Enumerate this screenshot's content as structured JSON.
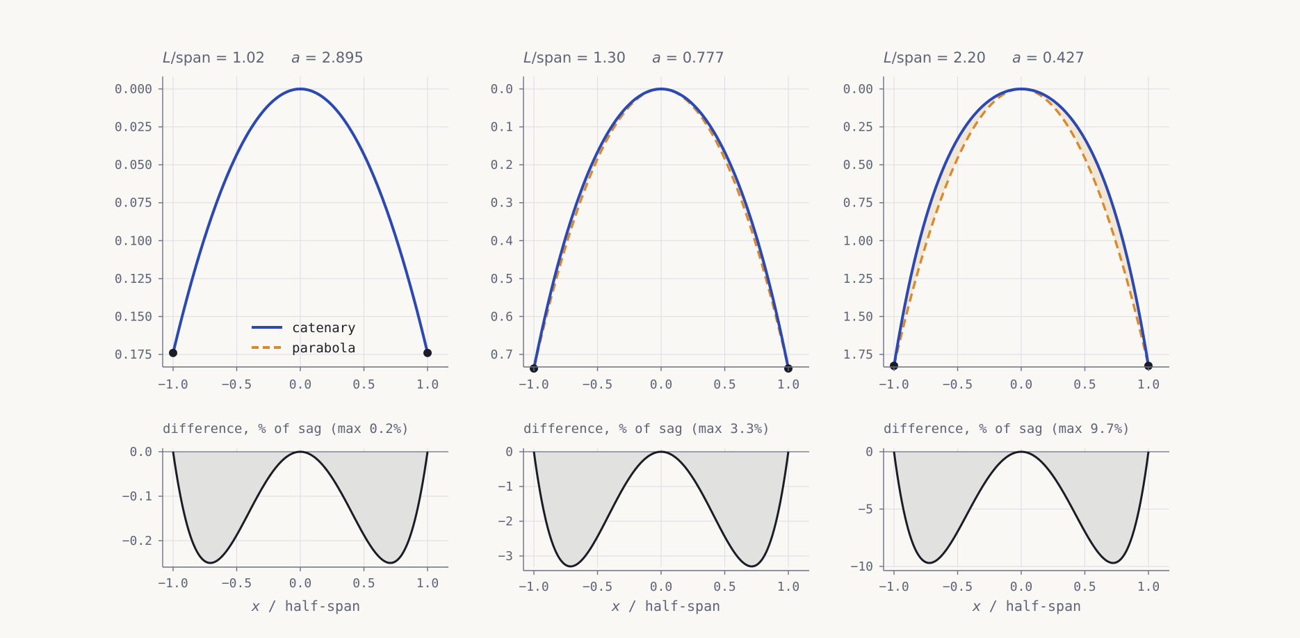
{
  "chart_data": {
    "type": "line",
    "panels": [
      {
        "title": {
          "L_label": "L",
          "span_text": "/span = 1.02",
          "a_label": "a",
          "a_text": " = 2.895"
        },
        "L_over_span": 1.02,
        "a": 2.895,
        "top": {
          "xlim": [
            -1.0,
            1.0
          ],
          "ylim": [
            0.0,
            0.175
          ],
          "y_inverted": true,
          "xticks": [
            "−1.0",
            "−0.5",
            "0.0",
            "0.5",
            "1.0"
          ],
          "yticks": [
            "0.000",
            "0.025",
            "0.050",
            "0.075",
            "0.100",
            "0.125",
            "0.150",
            "0.175"
          ],
          "series": [
            {
              "name": "catenary",
              "x": [
                -1.0,
                -0.75,
                -0.5,
                -0.25,
                0.0,
                0.25,
                0.5,
                0.75,
                1.0
              ],
              "y": [
                0.174,
                0.097,
                0.043,
                0.011,
                0.0,
                0.011,
                0.043,
                0.097,
                0.174
              ]
            },
            {
              "name": "parabola",
              "x": [
                -1.0,
                -0.75,
                -0.5,
                -0.25,
                0.0,
                0.25,
                0.5,
                0.75,
                1.0
              ],
              "y": [
                0.174,
                0.098,
                0.044,
                0.011,
                0.0,
                0.011,
                0.044,
                0.098,
                0.174
              ]
            }
          ],
          "endpoints": [
            [
              -1.0,
              0.174
            ],
            [
              1.0,
              0.174
            ]
          ]
        },
        "legend": {
          "position": "lower-center",
          "entries": [
            "catenary",
            "parabola"
          ]
        },
        "bottom": {
          "title": "difference, % of sag   (max 0.2%)",
          "xlim": [
            -1.0,
            1.0
          ],
          "ylim": [
            -0.25,
            0.0
          ],
          "xticks": [
            "−1.0",
            "−0.5",
            "0.0",
            "0.5",
            "1.0"
          ],
          "yticks": [
            "0.0",
            "−0.1",
            "−0.2"
          ],
          "series": [
            {
              "name": "difference",
              "x": [
                -1.0,
                -0.9,
                -0.7,
                -0.5,
                -0.3,
                0.0,
                0.3,
                0.5,
                0.7,
                0.9,
                1.0
              ],
              "y": [
                0.0,
                -0.15,
                -0.25,
                -0.19,
                -0.08,
                0.0,
                -0.08,
                -0.19,
                -0.25,
                -0.15,
                0.0
              ]
            }
          ]
        }
      },
      {
        "title": {
          "L_label": "L",
          "span_text": "/span = 1.30",
          "a_label": "a",
          "a_text": " = 0.777"
        },
        "L_over_span": 1.3,
        "a": 0.777,
        "top": {
          "xlim": [
            -1.0,
            1.0
          ],
          "ylim": [
            0.0,
            0.7
          ],
          "y_inverted": true,
          "xticks": [
            "−1.0",
            "−0.5",
            "0.0",
            "0.5",
            "1.0"
          ],
          "yticks": [
            "0.0",
            "0.1",
            "0.2",
            "0.3",
            "0.4",
            "0.5",
            "0.6",
            "0.7"
          ],
          "series": [
            {
              "name": "catenary",
              "x": [
                -1.0,
                -0.75,
                -0.5,
                -0.25,
                0.0,
                0.25,
                0.5,
                0.75,
                1.0
              ],
              "y": [
                0.737,
                0.397,
                0.17,
                0.041,
                0.0,
                0.041,
                0.17,
                0.397,
                0.737
              ]
            },
            {
              "name": "parabola",
              "x": [
                -1.0,
                -0.75,
                -0.5,
                -0.25,
                0.0,
                0.25,
                0.5,
                0.75,
                1.0
              ],
              "y": [
                0.737,
                0.415,
                0.184,
                0.046,
                0.0,
                0.046,
                0.184,
                0.415,
                0.737
              ]
            }
          ],
          "endpoints": [
            [
              -1.0,
              0.737
            ],
            [
              1.0,
              0.737
            ]
          ]
        },
        "bottom": {
          "title": "difference, % of sag   (max 3.3%)",
          "xlim": [
            -1.0,
            1.0
          ],
          "ylim": [
            -3.3,
            0.0
          ],
          "xticks": [
            "−1.0",
            "−0.5",
            "0.0",
            "0.5",
            "1.0"
          ],
          "yticks": [
            "0",
            "−1",
            "−2",
            "−3"
          ],
          "series": [
            {
              "name": "difference",
              "x": [
                -1.0,
                -0.9,
                -0.7,
                -0.5,
                -0.3,
                0.0,
                0.3,
                0.5,
                0.7,
                0.9,
                1.0
              ],
              "y": [
                0.0,
                -2.0,
                -3.3,
                -2.5,
                -1.05,
                0.0,
                -1.05,
                -2.5,
                -3.3,
                -2.0,
                0.0
              ]
            }
          ]
        }
      },
      {
        "title": {
          "L_label": "L",
          "span_text": "/span = 2.20",
          "a_label": "a",
          "a_text": " = 0.427"
        },
        "L_over_span": 2.2,
        "a": 0.427,
        "top": {
          "xlim": [
            -1.0,
            1.0
          ],
          "ylim": [
            0.0,
            1.75
          ],
          "y_inverted": true,
          "xticks": [
            "−1.0",
            "−0.5",
            "0.0",
            "0.5",
            "1.0"
          ],
          "yticks": [
            "0.00",
            "0.25",
            "0.50",
            "0.75",
            "1.00",
            "1.25",
            "1.50",
            "1.75"
          ],
          "series": [
            {
              "name": "catenary",
              "x": [
                -1.0,
                -0.75,
                -0.5,
                -0.25,
                0.0,
                0.25,
                0.5,
                0.75,
                1.0
              ],
              "y": [
                1.825,
                0.87,
                0.336,
                0.074,
                0.0,
                0.074,
                0.336,
                0.87,
                1.825
              ]
            },
            {
              "name": "parabola",
              "x": [
                -1.0,
                -0.75,
                -0.5,
                -0.25,
                0.0,
                0.25,
                0.5,
                0.75,
                1.0
              ],
              "y": [
                1.825,
                1.027,
                0.456,
                0.114,
                0.0,
                0.114,
                0.456,
                1.027,
                1.825
              ]
            }
          ],
          "endpoints": [
            [
              -1.0,
              1.825
            ],
            [
              1.0,
              1.825
            ]
          ]
        },
        "bottom": {
          "title": "difference, % of sag   (max 9.7%)",
          "xlim": [
            -1.0,
            1.0
          ],
          "ylim": [
            -10,
            0
          ],
          "xticks": [
            "−1.0",
            "−0.5",
            "0.0",
            "0.5",
            "1.0"
          ],
          "yticks": [
            "0",
            "−5",
            "−10"
          ],
          "series": [
            {
              "name": "difference",
              "x": [
                -1.0,
                -0.9,
                -0.7,
                -0.5,
                -0.3,
                0.0,
                0.3,
                0.5,
                0.7,
                0.9,
                1.0
              ],
              "y": [
                0.0,
                -6.0,
                -9.7,
                -7.4,
                -3.1,
                0.0,
                -3.1,
                -7.4,
                -9.7,
                -6.0,
                0.0
              ]
            }
          ]
        }
      }
    ],
    "shared_xlabel": {
      "var": "x",
      "rest": " / half-span"
    },
    "colors": {
      "catenary": "#2b49b5",
      "parabola": "#d98a2e",
      "fill_between": "#f1e3d2",
      "difference": "#1b1d26",
      "difference_fill": "#e1e1df",
      "endpoint": "#1b1d26"
    },
    "grid": true
  }
}
